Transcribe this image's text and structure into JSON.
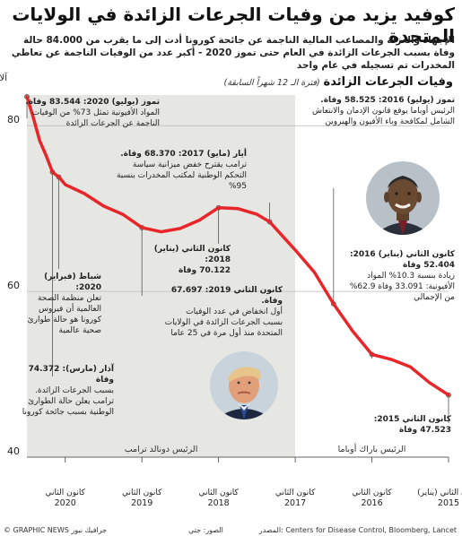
{
  "title": "كوفيد يزيد من وفيات الجرعات الزائدة في الولايات المتحدة",
  "subtitle": "الإجهاد والعزلة والمصاعب المالية الناجمة عن جائحة كورونا أدت إلى ما يقرب من 84.000 حالة وفاة بسبب الجرعات الزائدة في العام حتى تموز 2020 - أكبر عدد من الوفيات الناجمة عن تعاطي المخدرات تم تسجيله في عام واحد",
  "chart_heading": {
    "main": "وفيات الجرعات الزائدة",
    "sub": "(فترة الـ 12 شهراً السابقة)"
  },
  "chart_data": {
    "type": "line",
    "ylabel": "آلاف",
    "ylim": [
      40,
      85
    ],
    "yticks": [
      40,
      60,
      80
    ],
    "x_range": [
      "2015-01",
      "2020-07"
    ],
    "xticks": [
      {
        "x": "2015-01",
        "line1": "كانون الثاني (يناير)",
        "line2": "2015"
      },
      {
        "x": "2016-01",
        "line1": "كانون الثاني",
        "line2": "2016"
      },
      {
        "x": "2017-01",
        "line1": "كانون الثاني",
        "line2": "2017"
      },
      {
        "x": "2018-01",
        "line1": "كانون الثاني",
        "line2": "2018"
      },
      {
        "x": "2019-01",
        "line1": "كانون الثاني",
        "line2": "2019"
      },
      {
        "x": "2020-01",
        "line1": "كانون الثاني",
        "line2": "2020"
      }
    ],
    "series": [
      {
        "color": "#e8262a",
        "points": [
          [
            "2015-01",
            47.5
          ],
          [
            "2015-04",
            49.0
          ],
          [
            "2015-07",
            50.9
          ],
          [
            "2015-10",
            51.8
          ],
          [
            "2016-01",
            52.4
          ],
          [
            "2016-04",
            55.2
          ],
          [
            "2016-07",
            58.5
          ],
          [
            "2016-10",
            62.3
          ],
          [
            "2017-01",
            65.0
          ],
          [
            "2017-03",
            66.7
          ],
          [
            "2017-05",
            68.4
          ],
          [
            "2017-07",
            69.3
          ],
          [
            "2017-10",
            70.0
          ],
          [
            "2018-01",
            70.1
          ],
          [
            "2018-04",
            68.6
          ],
          [
            "2018-07",
            67.6
          ],
          [
            "2018-10",
            67.2
          ],
          [
            "2019-01",
            67.7
          ],
          [
            "2019-04",
            69.3
          ],
          [
            "2019-07",
            70.3
          ],
          [
            "2019-10",
            71.8
          ],
          [
            "2020-01",
            72.9
          ],
          [
            "2020-02",
            73.8
          ],
          [
            "2020-03",
            74.4
          ],
          [
            "2020-04",
            76.4
          ],
          [
            "2020-05",
            78.2
          ],
          [
            "2020-06",
            81.0
          ],
          [
            "2020-07",
            83.5
          ]
        ]
      }
    ],
    "shading": [
      {
        "from": "2017-01",
        "to": "2020-07",
        "color": "#e6e6e2",
        "label": "الرئيس دونالد ترامب"
      },
      {
        "from": "2015-01",
        "to": "2017-01",
        "color": "#ffffff",
        "label": "الرئيس باراك أوباما"
      }
    ]
  },
  "annotations": [
    {
      "id": "jul2020",
      "head": "تموز (يوليو) 2020: 83.544 وفاة.",
      "body": "المواد الأفيونية تمثل 73% من الوفيات الناجمة عن الجرعات الزائدة"
    },
    {
      "id": "may2017",
      "head": "أيار (مايو) 2017: 68.370 وفاة.",
      "body": "ترامب يقترح خفض ميزانية سياسة التحكم الوطنية لمكتب المخدرات بنسبة 95%"
    },
    {
      "id": "jul2016",
      "head": "تموز (يوليو) 2016: 58.525 وفاة.",
      "body": "الرئيس أوباما يوقع قانون الإدمان والانتعاش الشامل لمكافحة وباء الأفيون والهيروين"
    },
    {
      "id": "jan2018",
      "head": "كانون الثاني (يناير) 2018:",
      "value": "70.122 وفاة"
    },
    {
      "id": "feb2020",
      "head": "شباط (فبراير) 2020:",
      "body": "تعلن منظمة الصحة العالمية أن فيروس كورونا هو حالة طوارئ صحية عالمية"
    },
    {
      "id": "jan2019",
      "head": "كانون الثاني 2019: 67.697 وفاة.",
      "body": "أول انخفاض في عدد الوفيات بسبب الجرعات الزائدة في الولايات المتحدة منذ أول مرة في 25 عاما"
    },
    {
      "id": "jan2016",
      "head": "كانون الثاني (يناير) 2016:",
      "value": "52.404 وفاة",
      "body": "زيادة بنسبة 10.3% المواد الأفيونية: 33.091 وفاة 62.9% من الإجمالي"
    },
    {
      "id": "mar2020",
      "head": "آذار (مارس): 74.372 وفاة",
      "body": "بسبب الجرعات الزائدة. ترامب يعلن حالة الطوارئ الوطنية بسبب جائحة كورونا"
    },
    {
      "id": "jan2015",
      "head": "كانون الثاني 2015:",
      "value": "47.523 وفاة"
    }
  ],
  "footer": {
    "source": "المصدر: Centers for Disease Control, Bloomberg, Lancet",
    "photos": "الصور: جتي",
    "brand": "© GRAPHIC NEWS جرافيك نيوز"
  },
  "portraits": [
    {
      "name": "trump-portrait",
      "colors": {
        "bg": "#c9d3dc",
        "face": "#e2a07a",
        "hair": "#e6c48a",
        "suit": "#1e2740",
        "tie": "#2a4a8f"
      }
    },
    {
      "name": "obama-portrait",
      "colors": {
        "bg": "#b8c0c8",
        "face": "#6b4a32",
        "hair": "#2a2a2a",
        "suit": "#2a2f3a",
        "tie": "#7a1f2a"
      }
    }
  ]
}
